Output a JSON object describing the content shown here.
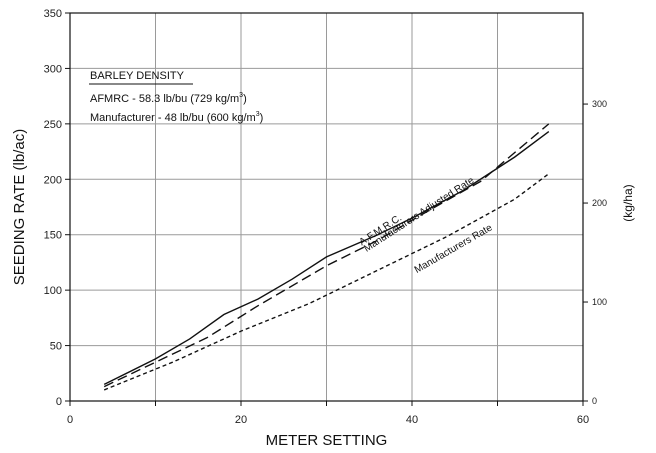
{
  "chart_data": {
    "type": "line",
    "xlabel": "METER SETTING",
    "ylabel": "SEEDING RATE (lb/ac)",
    "y2label": "(kg/ha)",
    "xlim": [
      0,
      60
    ],
    "ylim": [
      0,
      350
    ],
    "y2lim": [
      0,
      392
    ],
    "x_ticks": [
      0,
      20,
      40,
      60
    ],
    "x_tick_labels": [
      "0",
      "20",
      "40",
      "60"
    ],
    "x_grid": [
      0,
      10,
      20,
      30,
      40,
      50,
      60
    ],
    "y_ticks": [
      0,
      50,
      100,
      150,
      200,
      250,
      300,
      350
    ],
    "y_tick_labels": [
      "0",
      "50",
      "100",
      "150",
      "200",
      "250",
      "300",
      "350"
    ],
    "y2_ticks": [
      0,
      100,
      200,
      300
    ],
    "y2_tick_labels": [
      "0",
      "100",
      "200",
      "300"
    ],
    "grid": true,
    "legend_box": {
      "title": "BARLEY DENSITY",
      "lines": [
        {
          "text": "AFMRC - 58.3 lb/bu (729 kg/m",
          "sup": "3",
          "tail": ")"
        },
        {
          "text": "Manufacturer - 48 lb/bu (600 kg/m",
          "sup": "3",
          "tail": ")"
        }
      ],
      "position": "top-left"
    },
    "series": [
      {
        "name": "A.F.M.R.C.",
        "style": "solid",
        "x": [
          4,
          10,
          14,
          18,
          22,
          26,
          30,
          36,
          40,
          46,
          52,
          56
        ],
        "y": [
          15,
          38,
          56,
          78,
          92,
          110,
          130,
          150,
          165,
          190,
          220,
          243
        ]
      },
      {
        "name": "Manufacturers Adjusted Rate",
        "style": "dashed",
        "x": [
          4,
          10,
          16,
          22,
          30,
          36,
          42,
          48,
          56
        ],
        "y": [
          13,
          35,
          57,
          86,
          122,
          145,
          172,
          198,
          250
        ]
      },
      {
        "name": "Manufacturers Rate",
        "style": "dotted",
        "x": [
          4,
          12,
          20,
          28,
          36,
          44,
          52,
          56
        ],
        "y": [
          10,
          35,
          63,
          88,
          118,
          148,
          182,
          205
        ]
      }
    ],
    "colors": {
      "line": "#111111",
      "grid": "#9a9a9a"
    }
  }
}
